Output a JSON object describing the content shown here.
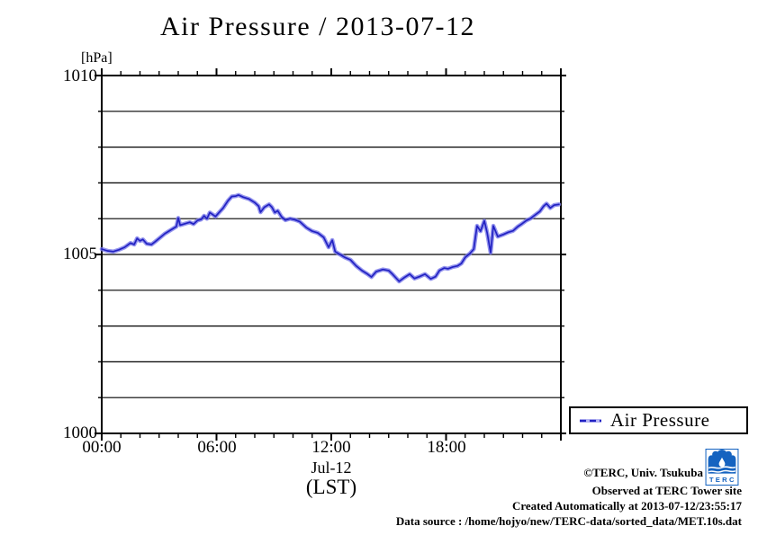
{
  "title": "Air Pressure / 2013-07-12",
  "y_axis": {
    "unit_label": "[hPa]",
    "tick_labels": [
      "1010",
      "1005",
      "1000"
    ]
  },
  "x_axis": {
    "tick_labels": [
      "00:00",
      "06:00",
      "12:00",
      "18:00"
    ],
    "date_label": "Jul-12",
    "tz_label": "(LST)"
  },
  "legend": {
    "label": "Air Pressure"
  },
  "footer": {
    "lines": [
      "©TERC, Univ. Tsukuba",
      "Observed at TERC Tower site",
      "Created Automatically at 2013-07-12/23:55:17",
      "Data source : /home/hojyo/new/TERC-data/sorted_data/MET.10s.dat"
    ]
  },
  "logo": {
    "text": "TERC",
    "color": "#1563c0"
  },
  "colors": {
    "line_core": "#2222c2",
    "line_halo": "#7b7bea",
    "axis": "#000000"
  },
  "chart_data": {
    "type": "line",
    "title": "Air Pressure / 2013-07-12",
    "xlabel": "Jul-12 (LST)",
    "ylabel": "[hPa]",
    "xlim_hours": [
      0,
      24
    ],
    "ylim": [
      1000,
      1010
    ],
    "x_major_tick_hours": [
      0,
      6,
      12,
      18
    ],
    "x_minor_tick_interval_hours": 1,
    "y_tick_interval": 1,
    "y_major_tick_interval": 5,
    "grid": "horizontal",
    "legend_position": "outside-right-bottom",
    "series": [
      {
        "name": "Air Pressure",
        "units": "hPa",
        "style": "dashed-thick",
        "color": "#2222c2",
        "points": [
          [
            0.0,
            1005.15
          ],
          [
            0.3,
            1005.1
          ],
          [
            0.6,
            1005.08
          ],
          [
            0.9,
            1005.13
          ],
          [
            1.2,
            1005.2
          ],
          [
            1.5,
            1005.32
          ],
          [
            1.7,
            1005.28
          ],
          [
            1.85,
            1005.45
          ],
          [
            2.0,
            1005.38
          ],
          [
            2.15,
            1005.42
          ],
          [
            2.35,
            1005.3
          ],
          [
            2.6,
            1005.28
          ],
          [
            2.8,
            1005.36
          ],
          [
            3.0,
            1005.45
          ],
          [
            3.3,
            1005.58
          ],
          [
            3.6,
            1005.68
          ],
          [
            3.9,
            1005.78
          ],
          [
            4.0,
            1006.02
          ],
          [
            4.1,
            1005.82
          ],
          [
            4.35,
            1005.86
          ],
          [
            4.6,
            1005.9
          ],
          [
            4.8,
            1005.85
          ],
          [
            5.0,
            1005.95
          ],
          [
            5.2,
            1005.98
          ],
          [
            5.35,
            1006.08
          ],
          [
            5.5,
            1006.0
          ],
          [
            5.65,
            1006.17
          ],
          [
            5.95,
            1006.06
          ],
          [
            6.1,
            1006.15
          ],
          [
            6.35,
            1006.3
          ],
          [
            6.6,
            1006.5
          ],
          [
            6.8,
            1006.62
          ],
          [
            7.0,
            1006.63
          ],
          [
            7.15,
            1006.66
          ],
          [
            7.4,
            1006.6
          ],
          [
            7.7,
            1006.55
          ],
          [
            8.0,
            1006.45
          ],
          [
            8.2,
            1006.35
          ],
          [
            8.3,
            1006.18
          ],
          [
            8.5,
            1006.32
          ],
          [
            8.75,
            1006.4
          ],
          [
            8.9,
            1006.32
          ],
          [
            9.05,
            1006.17
          ],
          [
            9.2,
            1006.22
          ],
          [
            9.4,
            1006.05
          ],
          [
            9.6,
            1005.96
          ],
          [
            9.85,
            1006.0
          ],
          [
            10.1,
            1005.97
          ],
          [
            10.35,
            1005.92
          ],
          [
            10.7,
            1005.75
          ],
          [
            11.0,
            1005.65
          ],
          [
            11.3,
            1005.6
          ],
          [
            11.6,
            1005.48
          ],
          [
            11.86,
            1005.2
          ],
          [
            12.05,
            1005.4
          ],
          [
            12.2,
            1005.08
          ],
          [
            12.45,
            1005.0
          ],
          [
            12.7,
            1004.92
          ],
          [
            13.0,
            1004.85
          ],
          [
            13.3,
            1004.68
          ],
          [
            13.6,
            1004.55
          ],
          [
            13.9,
            1004.45
          ],
          [
            14.1,
            1004.37
          ],
          [
            14.35,
            1004.52
          ],
          [
            14.7,
            1004.58
          ],
          [
            15.0,
            1004.55
          ],
          [
            15.2,
            1004.45
          ],
          [
            15.55,
            1004.25
          ],
          [
            15.8,
            1004.35
          ],
          [
            16.1,
            1004.45
          ],
          [
            16.35,
            1004.33
          ],
          [
            16.6,
            1004.38
          ],
          [
            16.9,
            1004.45
          ],
          [
            17.2,
            1004.32
          ],
          [
            17.45,
            1004.38
          ],
          [
            17.65,
            1004.55
          ],
          [
            17.9,
            1004.62
          ],
          [
            18.1,
            1004.6
          ],
          [
            18.35,
            1004.65
          ],
          [
            18.6,
            1004.68
          ],
          [
            18.8,
            1004.75
          ],
          [
            19.0,
            1004.92
          ],
          [
            19.25,
            1005.03
          ],
          [
            19.45,
            1005.15
          ],
          [
            19.62,
            1005.8
          ],
          [
            19.8,
            1005.65
          ],
          [
            20.0,
            1005.94
          ],
          [
            20.15,
            1005.6
          ],
          [
            20.33,
            1005.05
          ],
          [
            20.47,
            1005.8
          ],
          [
            20.7,
            1005.5
          ],
          [
            21.0,
            1005.56
          ],
          [
            21.25,
            1005.62
          ],
          [
            21.5,
            1005.66
          ],
          [
            21.75,
            1005.78
          ],
          [
            21.95,
            1005.85
          ],
          [
            22.2,
            1005.95
          ],
          [
            22.4,
            1006.0
          ],
          [
            22.65,
            1006.1
          ],
          [
            22.9,
            1006.2
          ],
          [
            23.1,
            1006.35
          ],
          [
            23.25,
            1006.42
          ],
          [
            23.45,
            1006.3
          ],
          [
            23.65,
            1006.38
          ],
          [
            23.9,
            1006.4
          ]
        ]
      }
    ]
  }
}
